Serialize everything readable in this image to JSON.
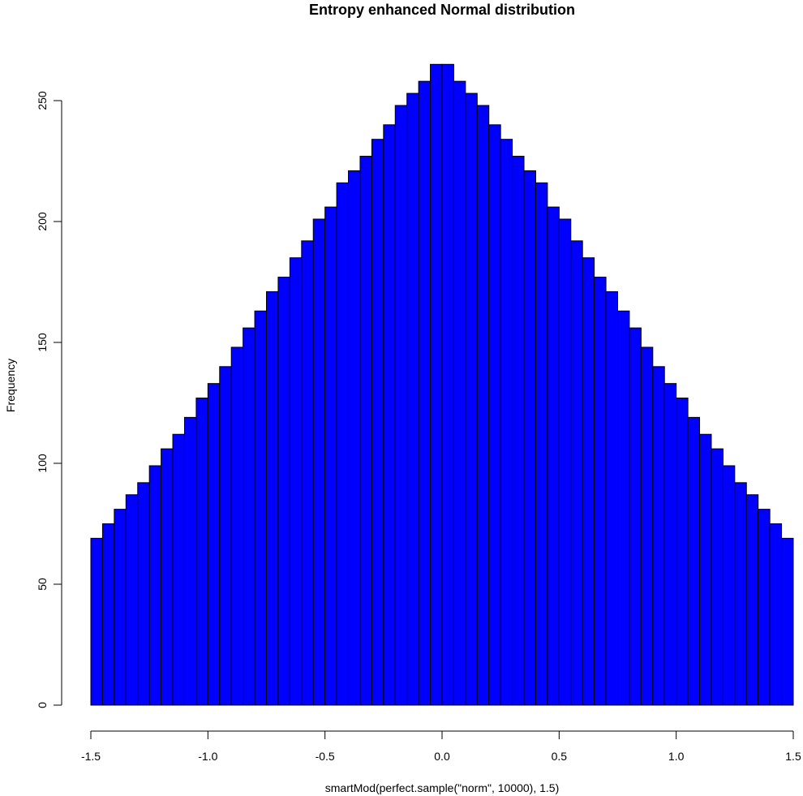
{
  "chart_data": {
    "type": "bar",
    "title": "Entropy enhanced Normal distribution",
    "xlabel": "smartMod(perfect.sample(\"norm\", 10000), 1.5)",
    "ylabel": "Frequency",
    "xlim": [
      -1.5,
      1.5
    ],
    "ylim": [
      0,
      265
    ],
    "x_ticks": [
      -1.5,
      -1.0,
      -0.5,
      0.0,
      0.5,
      1.0,
      1.5
    ],
    "x_tick_labels": [
      "-1.5",
      "-1.0",
      "-0.5",
      "0.0",
      "0.5",
      "1.0",
      "1.5"
    ],
    "y_ticks": [
      0,
      50,
      100,
      150,
      200,
      250
    ],
    "y_tick_labels": [
      "0",
      "50",
      "100",
      "150",
      "200",
      "250"
    ],
    "bin_width": 0.05,
    "bins_start": -1.5,
    "values": [
      69,
      75,
      81,
      87,
      92,
      99,
      106,
      112,
      119,
      127,
      133,
      140,
      148,
      156,
      163,
      171,
      177,
      185,
      192,
      201,
      206,
      216,
      221,
      227,
      234,
      240,
      248,
      253,
      258,
      265,
      265,
      258,
      253,
      248,
      240,
      234,
      227,
      221,
      216,
      206,
      201,
      192,
      185,
      177,
      171,
      163,
      156,
      148,
      140,
      133,
      127,
      119,
      112,
      106,
      99,
      92,
      87,
      81,
      75,
      69
    ],
    "bar_color": "#0000ff",
    "bar_border_color": "#000000",
    "grid": false,
    "legend": "none"
  }
}
